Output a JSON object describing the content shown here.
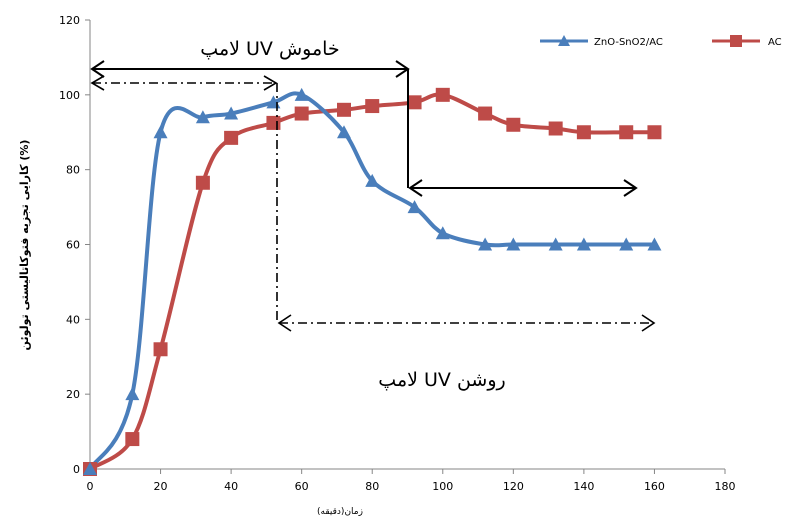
{
  "chart_data": {
    "type": "line",
    "xlabel": "زمان(دقیقه)",
    "ylabel": "کارایی تجزیه فتوکاتالیستی تولوئن (%)",
    "xlim": [
      0,
      180
    ],
    "ylim": [
      0,
      120
    ],
    "x_ticks": [
      "0",
      "20",
      "40",
      "60",
      "80",
      "100",
      "120",
      "140",
      "160",
      "180"
    ],
    "y_ticks": [
      "0",
      "20",
      "40",
      "60",
      "80",
      "100",
      "120"
    ],
    "grid": false,
    "legend_position": "top-right",
    "series": [
      {
        "name": "ZnO-SnO2/AC",
        "color": "#4a7ebb",
        "marker": "triangle",
        "x": [
          0,
          12,
          20,
          32,
          40,
          52,
          60,
          72,
          80,
          92,
          100,
          112,
          120,
          132,
          140,
          152,
          160
        ],
        "y": [
          0,
          20,
          90,
          94,
          95,
          98,
          100,
          90,
          77,
          70,
          63,
          60,
          60,
          60,
          60,
          60,
          60
        ]
      },
      {
        "name": "AC",
        "color": "#be4b48",
        "marker": "square",
        "x": [
          0,
          12,
          20,
          32,
          40,
          52,
          60,
          72,
          80,
          92,
          100,
          112,
          120,
          132,
          140,
          152,
          160
        ],
        "y": [
          0,
          8,
          32,
          76.5,
          88.5,
          92.5,
          95,
          96,
          97,
          98,
          100,
          95,
          92,
          91,
          90,
          90,
          90
        ]
      }
    ],
    "annotations": {
      "uv_off_label": "لامپ UV خاموش",
      "uv_on_label": "لامپ UV روشن"
    }
  }
}
